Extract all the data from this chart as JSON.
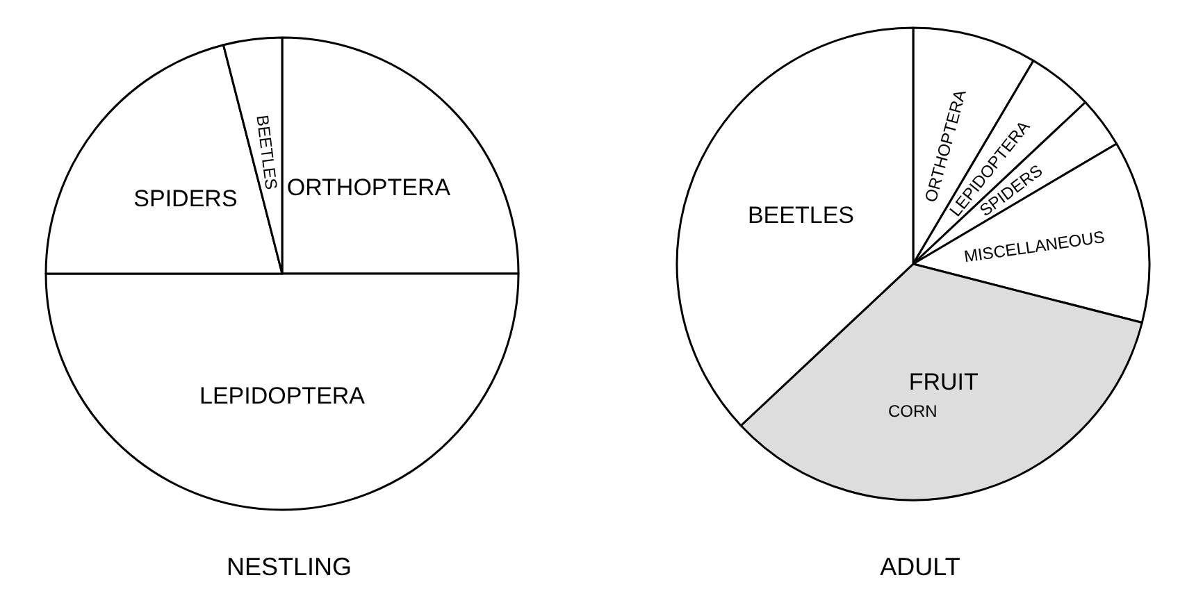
{
  "chart_data": [
    {
      "type": "pie",
      "title": "NESTLING",
      "categories": [
        "ORTHOPTERA",
        "LEPIDOPTERA",
        "SPIDERS",
        "BEETLES"
      ],
      "values": [
        25,
        50,
        21,
        4
      ],
      "colors": [
        "#ffffff",
        "#ffffff",
        "#ffffff",
        "#ffffff"
      ]
    },
    {
      "type": "pie",
      "title": "ADULT",
      "categories": [
        "ORTHOPTERA",
        "LEPIDOPTERA",
        "SPIDERS",
        "MISCELLANEOUS",
        "FRUIT",
        "BEETLES"
      ],
      "values": [
        8.5,
        4.5,
        3.5,
        12.5,
        34,
        37
      ],
      "colors": [
        "#ffffff",
        "#ffffff",
        "#ffffff",
        "#ffffff",
        "#dddddd",
        "#ffffff"
      ],
      "annotations": [
        "CORN"
      ]
    }
  ]
}
